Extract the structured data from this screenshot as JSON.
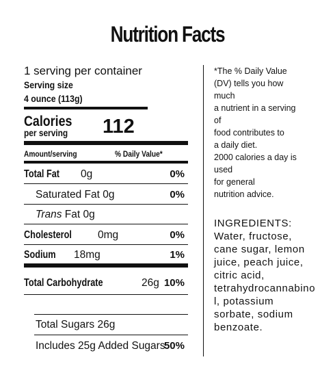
{
  "title": "Nutrition Facts",
  "label": {
    "servings": "1 serving per container",
    "serving_size_label": "Serving size",
    "serving_size": "4 ounce (113g)",
    "calories_label": "Calories",
    "calories_sub": "per serving",
    "calories": "112",
    "amount_header": "Amount/serving",
    "dv_header": "% Daily Value*",
    "rows": [
      {
        "name": "Total Fat",
        "amount": "0g",
        "dv": "0%"
      },
      {
        "name": "Saturated Fat",
        "amount": "0g",
        "dv": "0%"
      },
      {
        "prefix": "Trans",
        "name": "Fat",
        "amount": "0g"
      },
      {
        "name": "Cholesterol",
        "amount": "0mg",
        "dv": "0%"
      },
      {
        "name": "Sodium",
        "amount": "18mg",
        "dv": "1%"
      },
      {
        "name": "Total Carbohydrate",
        "amount": "26g",
        "dv": "10%"
      },
      {
        "name": "Total Sugars",
        "amount": "26g"
      },
      {
        "name": "Includes 25g Added Sugars",
        "dv": "50%"
      }
    ]
  },
  "footnote": [
    "*The % Daily Value (DV) tells you how much",
    "a nutrient in a serving of",
    "food contributes to",
    "a daily diet.",
    "2000 calories a day is used",
    "for general",
    "nutrition advice."
  ],
  "ingredients": "INGREDIENTS: Water, fructose, cane sugar, lemon juice, peach juice, citric acid, tetrahydrocannabinol, potassium sorbate, sodium benzoate."
}
